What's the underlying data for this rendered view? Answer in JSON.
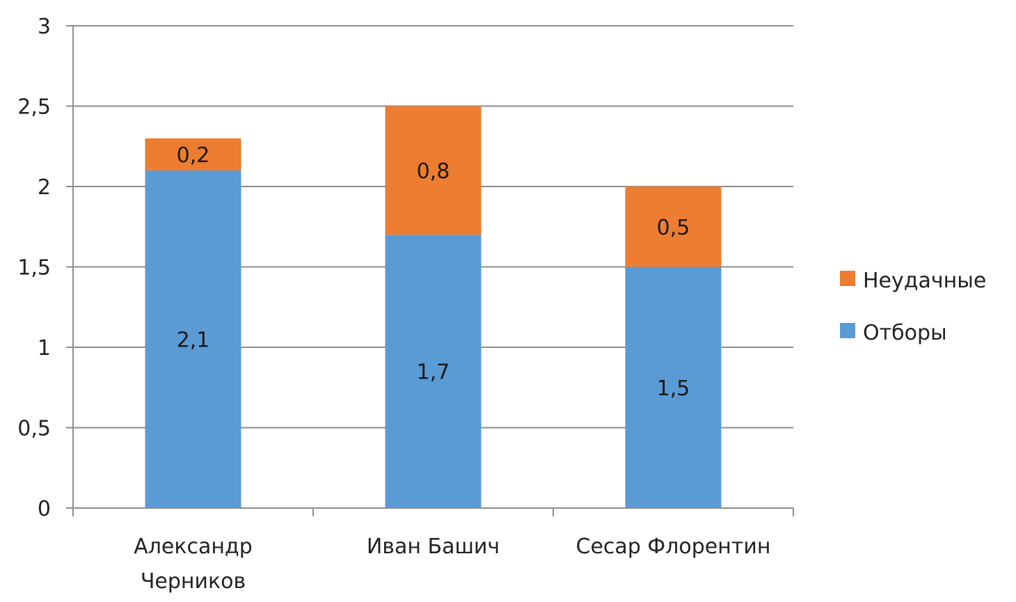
{
  "chart_data": {
    "type": "bar",
    "stacked": true,
    "categories": [
      [
        "Александр",
        "Черников"
      ],
      [
        "Иван Башич"
      ],
      [
        "Сесар Флорентин"
      ]
    ],
    "series": [
      {
        "name": "Отборы",
        "values": [
          2.1,
          1.7,
          1.5
        ],
        "labels": [
          "2,1",
          "1,7",
          "1,5"
        ],
        "color": "#5b9bd5"
      },
      {
        "name": "Неудачные",
        "values": [
          0.2,
          0.8,
          0.5
        ],
        "labels": [
          "0,2",
          "0,8",
          "0,5"
        ],
        "color": "#ed7d31"
      }
    ],
    "ylim": [
      0,
      3
    ],
    "yticks": [
      0,
      0.5,
      1,
      1.5,
      2,
      2.5,
      3
    ],
    "ytick_labels": [
      "0",
      "0,5",
      "1",
      "1,5",
      "2",
      "2,5",
      "3"
    ],
    "grid": true,
    "legend_position": "right",
    "legend_order": [
      "Неудачные",
      "Отборы"
    ]
  }
}
